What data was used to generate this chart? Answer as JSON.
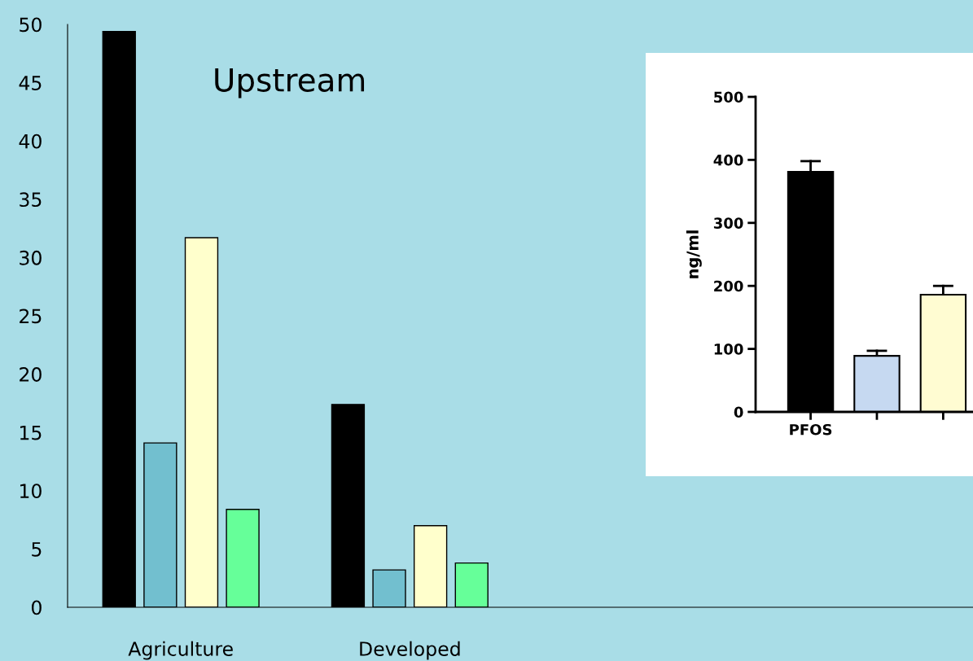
{
  "chart_data": [
    {
      "type": "bar",
      "title": "Upstream",
      "categories": [
        "Agriculture",
        "Developed"
      ],
      "series": [
        {
          "color": "#000000",
          "values": [
            49.4,
            17.4
          ]
        },
        {
          "color": "#72bfcf",
          "values": [
            14.1,
            3.2
          ]
        },
        {
          "color": "#ffffcc",
          "values": [
            31.7,
            7.0
          ]
        },
        {
          "color": "#66ff99",
          "values": [
            8.4,
            3.8
          ]
        }
      ],
      "ylim": [
        0,
        50
      ],
      "yticks": [
        0,
        5,
        10,
        15,
        20,
        25,
        30,
        35,
        40,
        45,
        50
      ],
      "grid": false,
      "legend": false
    },
    {
      "type": "bar",
      "ylabel": "ng/ml",
      "categories": [
        "PFOS",
        null,
        null
      ],
      "series": [
        {
          "colors": [
            "#000000",
            "#c6d9f1",
            "#fffcd2"
          ],
          "values": [
            381,
            89,
            186
          ],
          "errors": [
            17,
            8,
            14
          ]
        }
      ],
      "ylim": [
        0,
        500
      ],
      "yticks": [
        0,
        100,
        200,
        300,
        400,
        500
      ],
      "grid": false,
      "legend": false
    }
  ]
}
